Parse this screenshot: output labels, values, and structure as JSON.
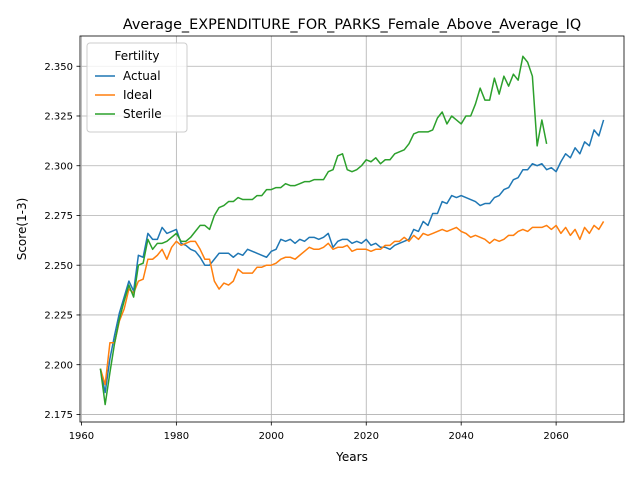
{
  "chart_data": {
    "type": "line",
    "title": "Average_EXPENDITURE_FOR_PARKS_Female_Above_Average_IQ",
    "xlabel": "Years",
    "ylabel": "Score(1-3)",
    "xlim": [
      1959.7,
      2074.3
    ],
    "ylim": [
      2.1712,
      2.3652
    ],
    "xticks": [
      1960,
      1980,
      2000,
      2020,
      2040,
      2060
    ],
    "yticks": [
      2.175,
      2.2,
      2.225,
      2.25,
      2.275,
      2.3,
      2.325,
      2.35
    ],
    "ytick_labels": [
      "2.175",
      "2.200",
      "2.225",
      "2.250",
      "2.275",
      "2.300",
      "2.325",
      "2.350"
    ],
    "grid": true,
    "legend": {
      "title": "Fertility",
      "placement": "upper-left"
    },
    "x": [
      1964,
      1965,
      1966,
      1967,
      1968,
      1969,
      1970,
      1971,
      1972,
      1973,
      1974,
      1975,
      1976,
      1977,
      1978,
      1979,
      1980,
      1981,
      1982,
      1983,
      1984,
      1985,
      1986,
      1987,
      1988,
      1989,
      1990,
      1991,
      1992,
      1993,
      1994,
      1995,
      1996,
      1997,
      1998,
      1999,
      2000,
      2001,
      2002,
      2003,
      2004,
      2005,
      2006,
      2007,
      2008,
      2009,
      2010,
      2011,
      2012,
      2013,
      2014,
      2015,
      2016,
      2017,
      2018,
      2019,
      2020,
      2021,
      2022,
      2023,
      2024,
      2025,
      2026,
      2027,
      2028,
      2029,
      2030,
      2031,
      2032,
      2033,
      2034,
      2035,
      2036,
      2037,
      2038,
      2039,
      2040,
      2041,
      2042,
      2043,
      2044,
      2045,
      2046,
      2047,
      2048,
      2049,
      2050,
      2051,
      2052,
      2053,
      2054,
      2055,
      2056,
      2057,
      2058,
      2059,
      2060,
      2061,
      2062,
      2063,
      2064,
      2065,
      2066,
      2067,
      2068,
      2069,
      2070
    ],
    "series": [
      {
        "name": "Actual",
        "color": "#1f77b4",
        "values": [
          2.198,
          2.186,
          2.203,
          2.215,
          2.226,
          2.234,
          2.242,
          2.237,
          2.255,
          2.254,
          2.266,
          2.263,
          2.263,
          2.269,
          2.266,
          2.267,
          2.268,
          2.261,
          2.26,
          2.258,
          2.257,
          2.254,
          2.25,
          2.25,
          2.253,
          2.256,
          2.256,
          2.256,
          2.254,
          2.256,
          2.255,
          2.258,
          2.257,
          2.256,
          2.255,
          2.254,
          2.257,
          2.258,
          2.263,
          2.262,
          2.263,
          2.261,
          2.263,
          2.262,
          2.264,
          2.264,
          2.263,
          2.264,
          2.266,
          2.259,
          2.262,
          2.263,
          2.263,
          2.261,
          2.262,
          2.261,
          2.263,
          2.26,
          2.261,
          2.259,
          2.259,
          2.258,
          2.26,
          2.261,
          2.262,
          2.263,
          2.268,
          2.267,
          2.272,
          2.27,
          2.276,
          2.276,
          2.282,
          2.281,
          2.285,
          2.284,
          2.285,
          2.284,
          2.283,
          2.282,
          2.28,
          2.281,
          2.281,
          2.284,
          2.285,
          2.288,
          2.289,
          2.293,
          2.294,
          2.298,
          2.298,
          2.301,
          2.3,
          2.301,
          2.298,
          2.299,
          2.297,
          2.302,
          2.306,
          2.304,
          2.309,
          2.306,
          2.312,
          2.31,
          2.318,
          2.315,
          2.323
        ]
      },
      {
        "name": "Ideal",
        "color": "#ff7f0e",
        "values": [
          2.198,
          2.19,
          2.211,
          2.211,
          2.222,
          2.228,
          2.238,
          2.236,
          2.242,
          2.243,
          2.253,
          2.253,
          2.255,
          2.258,
          2.253,
          2.259,
          2.262,
          2.26,
          2.261,
          2.262,
          2.262,
          2.258,
          2.253,
          2.253,
          2.242,
          2.238,
          2.241,
          2.24,
          2.242,
          2.248,
          2.246,
          2.246,
          2.246,
          2.249,
          2.249,
          2.25,
          2.25,
          2.251,
          2.253,
          2.254,
          2.254,
          2.253,
          2.255,
          2.257,
          2.259,
          2.258,
          2.258,
          2.259,
          2.261,
          2.258,
          2.259,
          2.259,
          2.26,
          2.257,
          2.258,
          2.258,
          2.258,
          2.257,
          2.258,
          2.258,
          2.26,
          2.26,
          2.262,
          2.262,
          2.264,
          2.262,
          2.265,
          2.263,
          2.266,
          2.265,
          2.266,
          2.267,
          2.268,
          2.267,
          2.268,
          2.269,
          2.267,
          2.266,
          2.264,
          2.265,
          2.264,
          2.263,
          2.261,
          2.263,
          2.262,
          2.263,
          2.265,
          2.265,
          2.267,
          2.268,
          2.267,
          2.269,
          2.269,
          2.269,
          2.27,
          2.268,
          2.27,
          2.266,
          2.269,
          2.265,
          2.268,
          2.263,
          2.269,
          2.266,
          2.27,
          2.268,
          2.272
        ]
      },
      {
        "name": "Sterile",
        "color": "#2ca02c",
        "values": [
          2.198,
          2.18,
          2.196,
          2.211,
          2.223,
          2.232,
          2.24,
          2.234,
          2.25,
          2.251,
          2.263,
          2.258,
          2.261,
          2.261,
          2.262,
          2.264,
          2.266,
          2.262,
          2.262,
          2.264,
          2.267,
          2.27,
          2.27,
          2.268,
          2.275,
          2.279,
          2.28,
          2.282,
          2.282,
          2.284,
          2.283,
          2.283,
          2.283,
          2.285,
          2.285,
          2.288,
          2.288,
          2.289,
          2.289,
          2.291,
          2.29,
          2.29,
          2.291,
          2.292,
          2.292,
          2.293,
          2.293,
          2.293,
          2.297,
          2.298,
          2.305,
          2.306,
          2.298,
          2.297,
          2.298,
          2.3,
          2.303,
          2.302,
          2.304,
          2.301,
          2.303,
          2.303,
          2.306,
          2.307,
          2.308,
          2.311,
          2.316,
          2.317,
          2.317,
          2.317,
          2.318,
          2.324,
          2.327,
          2.321,
          2.325,
          2.323,
          2.321,
          2.325,
          2.325,
          2.331,
          2.339,
          2.333,
          2.333,
          2.344,
          2.336,
          2.345,
          2.34,
          2.346,
          2.343,
          2.355,
          2.352,
          2.345,
          2.31,
          2.323,
          2.311,
          null,
          null,
          null,
          null,
          null,
          null,
          null,
          null,
          null,
          null,
          null,
          null
        ]
      }
    ]
  }
}
